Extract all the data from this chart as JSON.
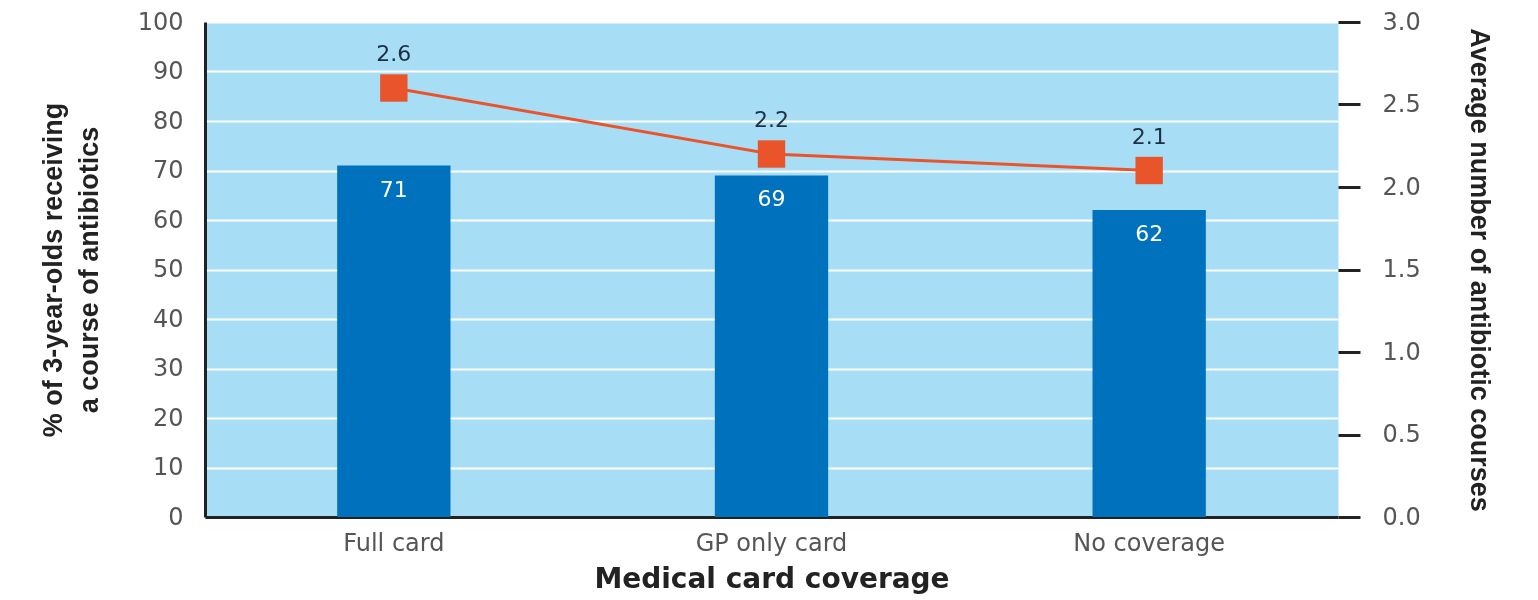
{
  "chart_data": {
    "type": "bar",
    "xlabel": "Medical card coverage",
    "ylabel": "% of 3-year-olds receiving a course of antibiotics",
    "y2label": "Average number of antibiotic courses",
    "categories": [
      "Full card",
      "GP only card",
      "No coverage"
    ],
    "series": [
      {
        "color": "#0071bc",
        "values": [
          71,
          69,
          62
        ]
      },
      {
        "type": "line",
        "axis": "y2",
        "color": "#e9542a",
        "values": [
          2.6,
          2.2,
          2.1
        ]
      }
    ],
    "ylim": [
      0,
      100
    ],
    "yticks": [
      0,
      10,
      20,
      30,
      40,
      50,
      60,
      70,
      80,
      90,
      100
    ],
    "y2lim": [
      0,
      3
    ],
    "y2ticks": [
      {
        "value": 0,
        "label": "0.0"
      },
      0.5,
      {
        "value": 1,
        "label": "1.0"
      },
      1.5,
      {
        "value": 2,
        "label": "2.0"
      },
      2.5,
      {
        "value": 3,
        "label": "3.0"
      }
    ],
    "data_labels": true,
    "grid": "y",
    "marker": "square",
    "line_style": "solid"
  }
}
